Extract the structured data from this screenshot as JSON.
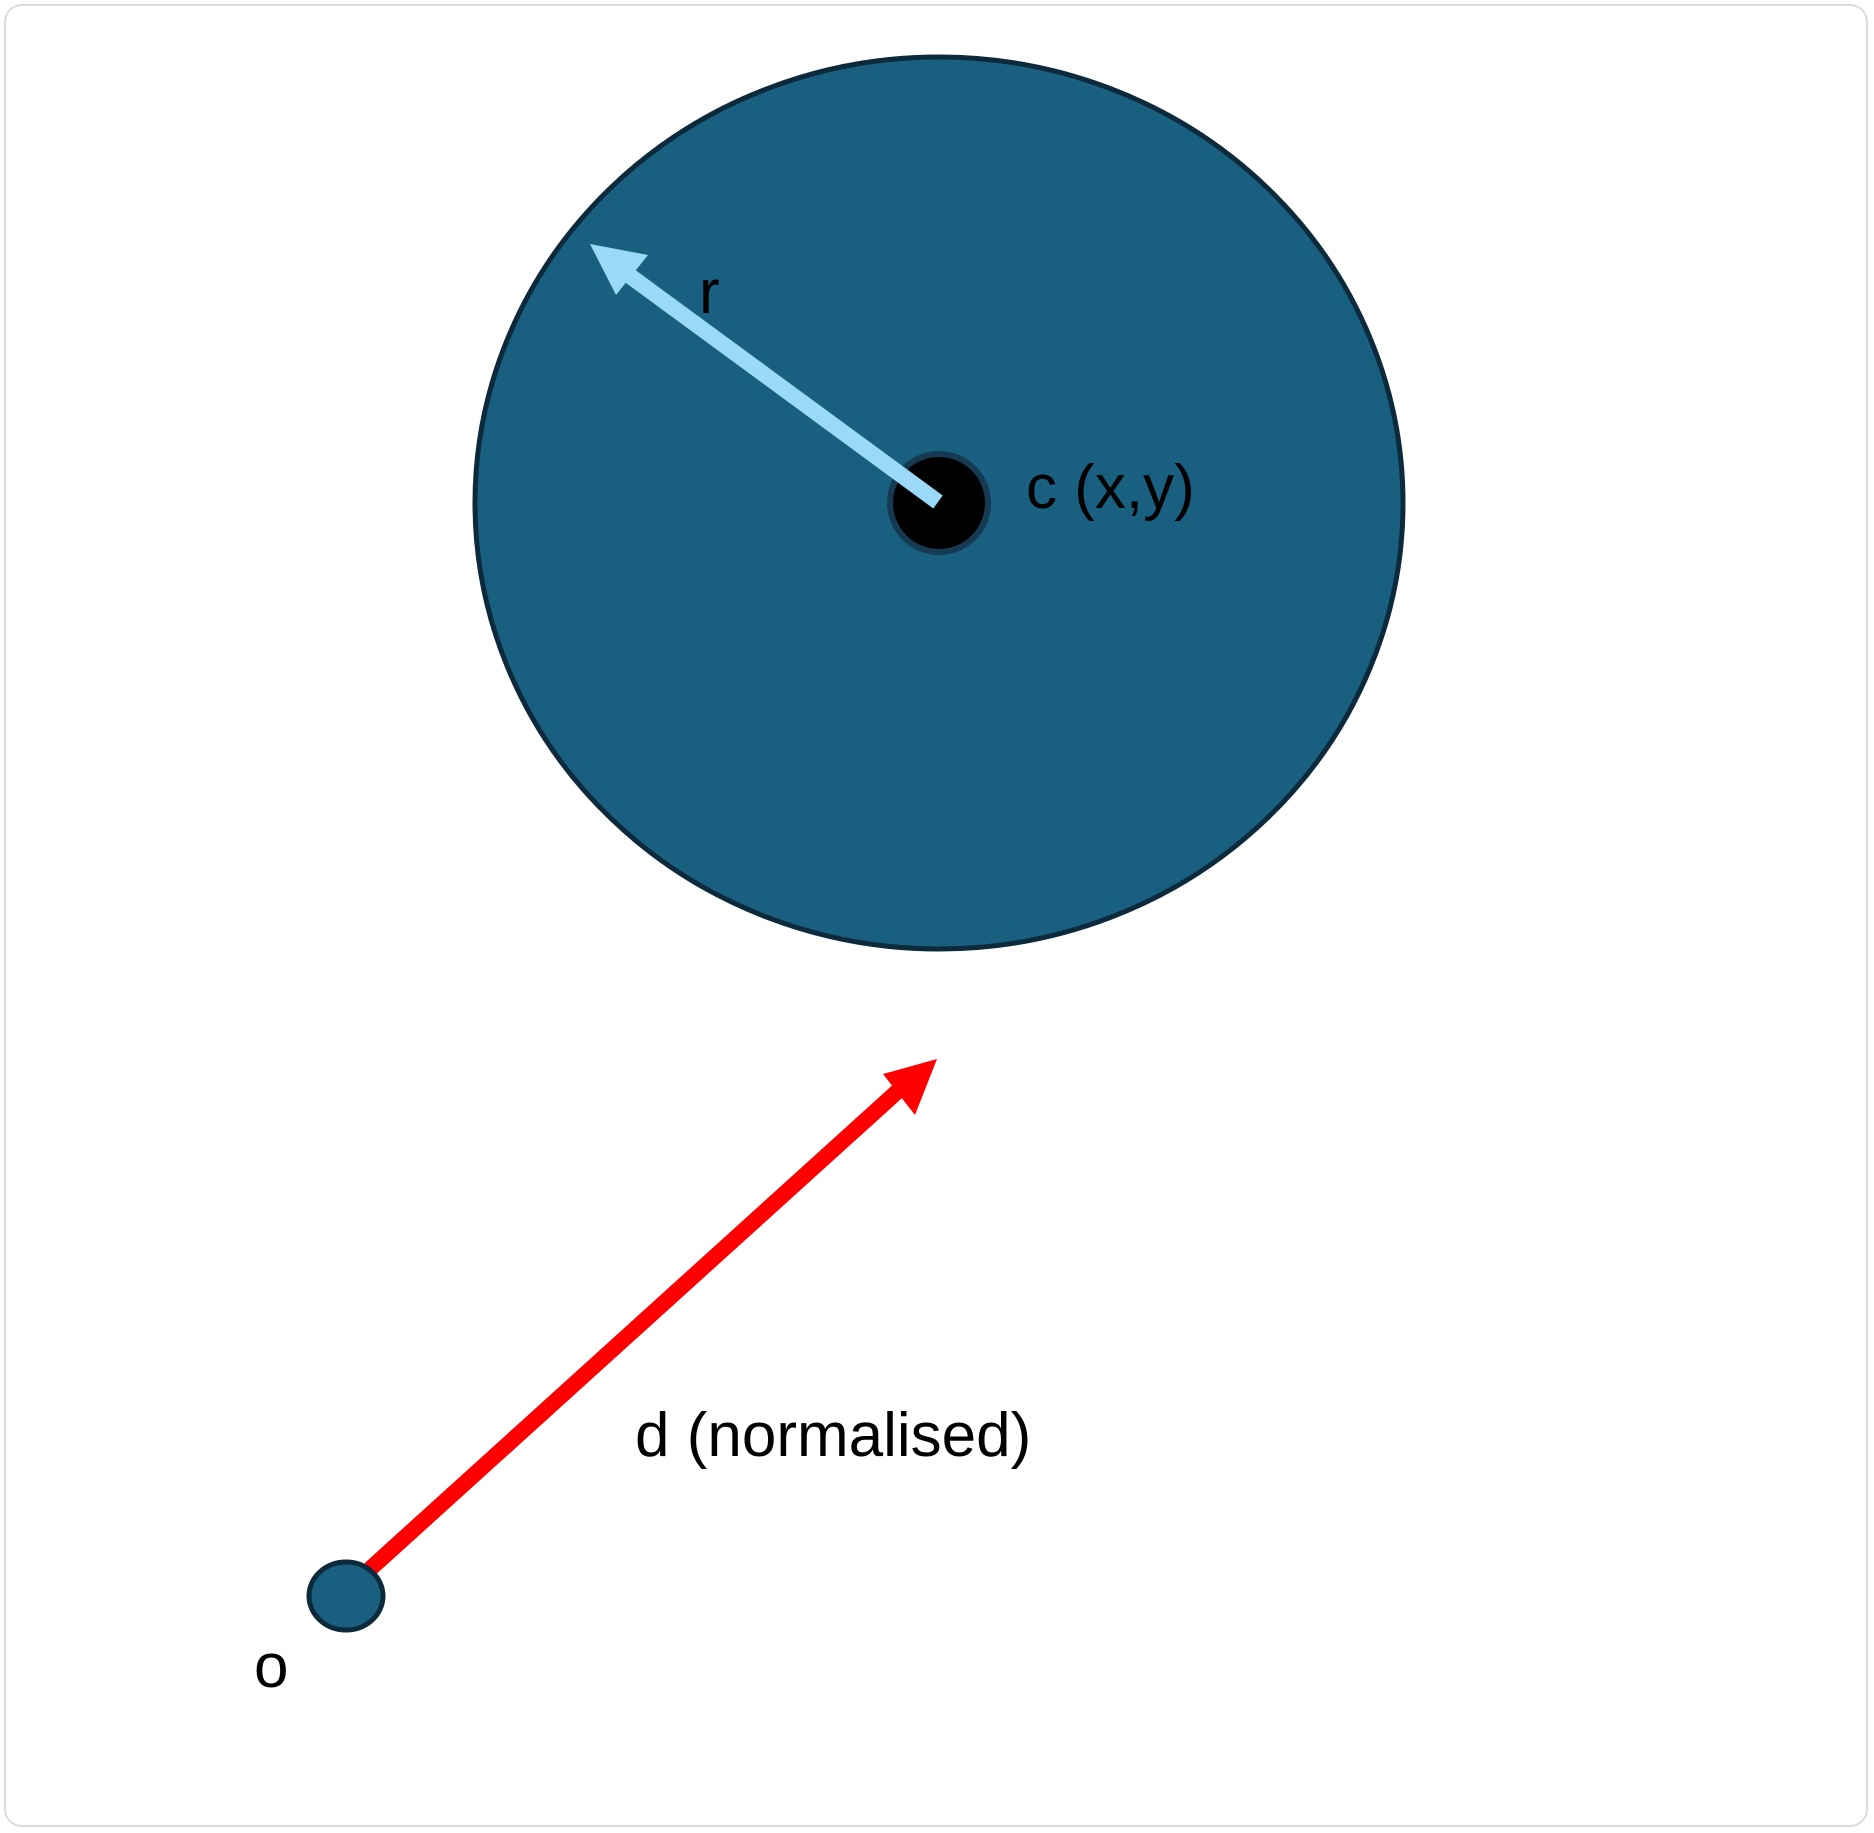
{
  "labels": {
    "radius": "r",
    "center": "c (x,y)",
    "direction": "d (normalised)",
    "origin": "o"
  },
  "colors": {
    "sphere_fill": "#185f80",
    "sphere_stroke": "#0c2a3c",
    "center_dot": "#000000",
    "radius_arrow": "#9ad9f7",
    "direction_arrow": "#ff0000",
    "origin_fill": "#185f80"
  }
}
